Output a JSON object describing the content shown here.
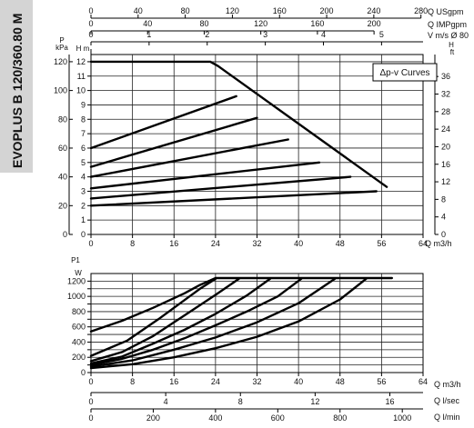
{
  "sidebar": {
    "title": "EVOPLUS B 120/360.80 M",
    "bg": "#d4d4d4"
  },
  "chart_data": [
    {
      "type": "line",
      "title": "",
      "legend_label": "Δp-v Curves",
      "legend_placement": "top-right",
      "grid": true,
      "xlabel": "Q m3/h",
      "xlim": [
        0,
        64
      ],
      "x_ticks": [
        0,
        8,
        16,
        24,
        32,
        40,
        48,
        56,
        64
      ],
      "ylim_kpa": [
        0,
        125
      ],
      "kpa_ticks": [
        0,
        20,
        40,
        60,
        80,
        100,
        120
      ],
      "kpa_axis_label": [
        "P",
        "kPa"
      ],
      "ylim_h_m": [
        0,
        12.5
      ],
      "h_m_ticks": [
        0,
        1,
        2,
        3,
        4,
        5,
        6,
        7,
        8,
        9,
        10,
        11,
        12
      ],
      "h_m_axis_label": "H m",
      "h_ft_ticks": [
        0,
        4,
        8,
        12,
        16,
        20,
        24,
        28,
        32,
        36
      ],
      "h_ft_axis_label": [
        "H",
        "ft"
      ],
      "top_axes": [
        {
          "unit": "Q USgpm",
          "ticks": [
            0,
            40,
            80,
            120,
            160,
            200,
            240,
            280
          ]
        },
        {
          "unit": "Q IMPgpm",
          "ticks": [
            0,
            40,
            80,
            120,
            160,
            200
          ]
        },
        {
          "unit": "V m/s Ø 80",
          "ticks": [
            0,
            1,
            2,
            3,
            4,
            5
          ]
        }
      ],
      "series": [
        {
          "x": [
            0,
            23,
            24.5,
            57
          ],
          "y": [
            12,
            12,
            11.7,
            3.3
          ]
        },
        {
          "x": [
            0,
            28
          ],
          "y": [
            6,
            9.6
          ]
        },
        {
          "x": [
            0,
            32
          ],
          "y": [
            4.7,
            8.1
          ]
        },
        {
          "x": [
            0,
            38
          ],
          "y": [
            4,
            6.6
          ]
        },
        {
          "x": [
            0,
            44
          ],
          "y": [
            3.2,
            5
          ]
        },
        {
          "x": [
            0,
            50
          ],
          "y": [
            2.5,
            4
          ]
        },
        {
          "x": [
            0,
            55
          ],
          "y": [
            2,
            3
          ]
        }
      ]
    },
    {
      "type": "line",
      "title": "",
      "grid": true,
      "ylabel": [
        "P1",
        "W"
      ],
      "ylim": [
        0,
        1300
      ],
      "y_ticks": [
        0,
        100,
        200,
        300,
        400,
        500,
        600,
        700,
        800,
        900,
        1000,
        1100,
        1200
      ],
      "xlim": [
        0,
        64
      ],
      "bottom_axes": [
        {
          "unit": "Q m3/h",
          "ticks": [
            0,
            8,
            16,
            24,
            32,
            40,
            48,
            56,
            64
          ]
        },
        {
          "unit": "Q l/sec",
          "ticks": [
            0,
            4,
            8,
            12,
            16
          ]
        },
        {
          "unit": "Q l/min",
          "ticks": [
            0,
            200,
            400,
            600,
            800,
            1000
          ]
        }
      ],
      "series": [
        {
          "x": [
            0,
            6,
            12,
            18,
            21,
            24,
            58
          ],
          "y": [
            540,
            680,
            850,
            1040,
            1150,
            1240,
            1240
          ]
        },
        {
          "x": [
            0,
            7,
            13,
            18,
            21,
            24
          ],
          "y": [
            220,
            420,
            700,
            950,
            1100,
            1230
          ]
        },
        {
          "x": [
            0,
            6,
            12,
            18,
            24,
            28.5
          ],
          "y": [
            150,
            270,
            480,
            750,
            1020,
            1230
          ]
        },
        {
          "x": [
            0,
            6,
            12,
            18,
            24,
            30,
            34.5
          ],
          "y": [
            120,
            210,
            380,
            560,
            770,
            1010,
            1230
          ]
        },
        {
          "x": [
            0,
            6,
            12,
            18,
            24,
            30,
            36,
            40.5
          ],
          "y": [
            100,
            180,
            300,
            450,
            620,
            800,
            1000,
            1230
          ]
        },
        {
          "x": [
            0,
            8,
            16,
            24,
            32,
            40,
            47
          ],
          "y": [
            80,
            160,
            300,
            460,
            660,
            910,
            1230
          ]
        },
        {
          "x": [
            0,
            8,
            16,
            24,
            32,
            40,
            48,
            53
          ],
          "y": [
            60,
            110,
            200,
            320,
            470,
            670,
            960,
            1230
          ]
        }
      ]
    }
  ]
}
